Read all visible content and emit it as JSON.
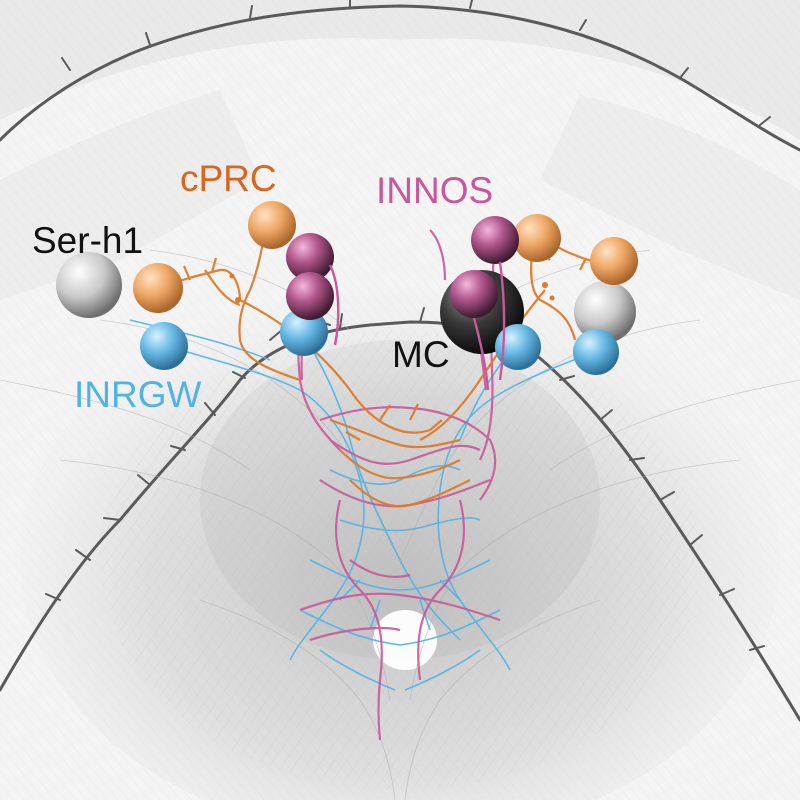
{
  "labels": {
    "ser_h1": "Ser-h1",
    "cprc": "cPRC",
    "innos": "INNOS",
    "inrgw": "INRGW",
    "mc": "MC"
  },
  "colors": {
    "ser_h1": "#111111",
    "cprc": "#d9661c",
    "innos": "#c9589a",
    "inrgw": "#4fb3e6",
    "mc": "#111111",
    "background": "#f6f6f6",
    "neuropil": "#b8b8b8",
    "outline": "#555555"
  }
}
